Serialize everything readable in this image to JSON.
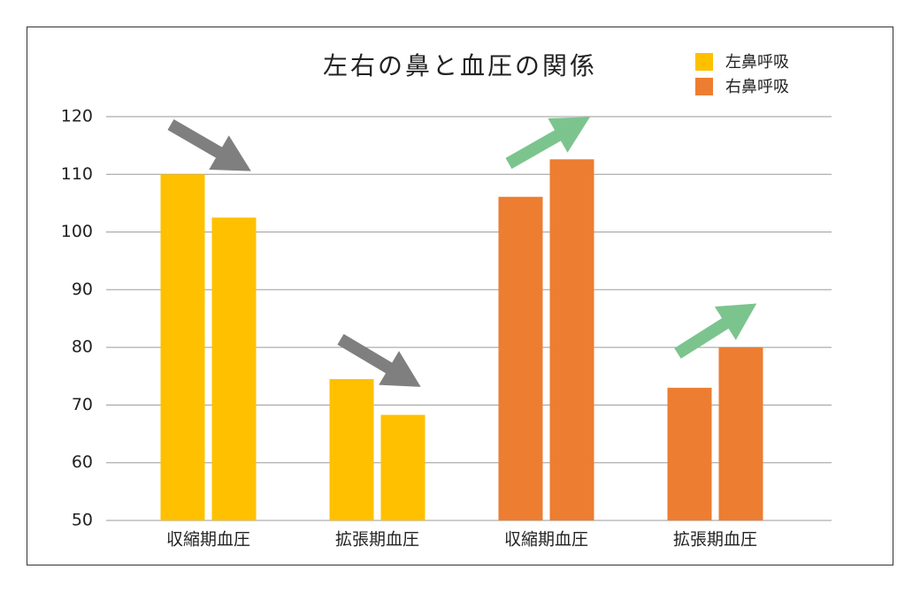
{
  "chart_data": {
    "type": "grouped-bar",
    "title": "左右の鼻と血圧の関係",
    "categories": [
      "収縮期血圧",
      "拡張期血圧",
      "収縮期血圧",
      "拡張期血圧"
    ],
    "series": [
      {
        "name": "左鼻呼吸",
        "color": "#ffc000",
        "values": [
          [
            110,
            102.5
          ],
          [
            74.5,
            68.3
          ],
          null,
          null
        ]
      },
      {
        "name": "右鼻呼吸",
        "color": "#ed7d31",
        "values": [
          null,
          null,
          [
            106.1,
            112.6
          ],
          [
            73,
            80
          ]
        ]
      }
    ],
    "ylim": [
      50,
      120
    ],
    "yticks": [
      50,
      60,
      70,
      80,
      90,
      100,
      110,
      120
    ],
    "grid": true
  }
}
